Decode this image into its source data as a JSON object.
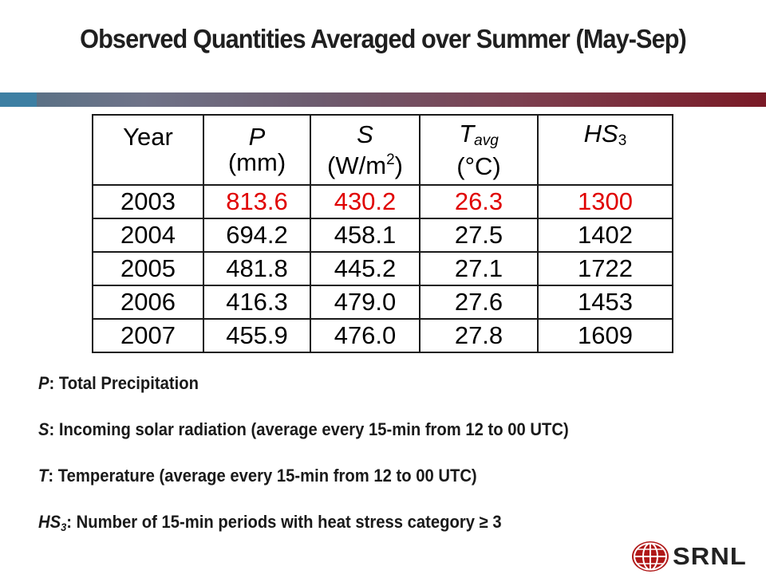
{
  "title": "Observed Quantities Averaged over Summer (May-Sep)",
  "table": {
    "headers": {
      "year": "Year",
      "p_sym": "P",
      "p_unit": "(mm)",
      "s_sym": "S",
      "s_unit_a": "(W/m",
      "s_unit_sup": "2",
      "s_unit_b": ")",
      "t_sym": "T",
      "t_sub": "avg",
      "t_unit": "(°C)",
      "hs_sym": "HS",
      "hs_sub": "3"
    },
    "rows": [
      [
        "2003",
        "813.6",
        "430.2",
        "26.3",
        "1300"
      ],
      [
        "2004",
        "694.2",
        "458.1",
        "27.5",
        "1402"
      ],
      [
        "2005",
        "481.8",
        "445.2",
        "27.1",
        "1722"
      ],
      [
        "2006",
        "416.3",
        "479.0",
        "27.6",
        "1453"
      ],
      [
        "2007",
        "455.9",
        "476.0",
        "27.8",
        "1609"
      ]
    ],
    "highlight_color": "#e00000"
  },
  "legend": {
    "p": {
      "sym": "P",
      "text": ": Total Precipitation"
    },
    "s": {
      "sym": "S",
      "text": ": Incoming solar radiation (average every 15-min from 12 to 00 UTC)"
    },
    "t": {
      "sym": "T",
      "text": ": Temperature (average every 15-min from 12 to 00 UTC)"
    },
    "hs": {
      "sym": "HS",
      "sub": "3",
      "text": ": Number of 15-min periods with heat stress category ≥ 3"
    }
  },
  "logo": {
    "text": "SRNL",
    "icon": "globe-icon"
  }
}
